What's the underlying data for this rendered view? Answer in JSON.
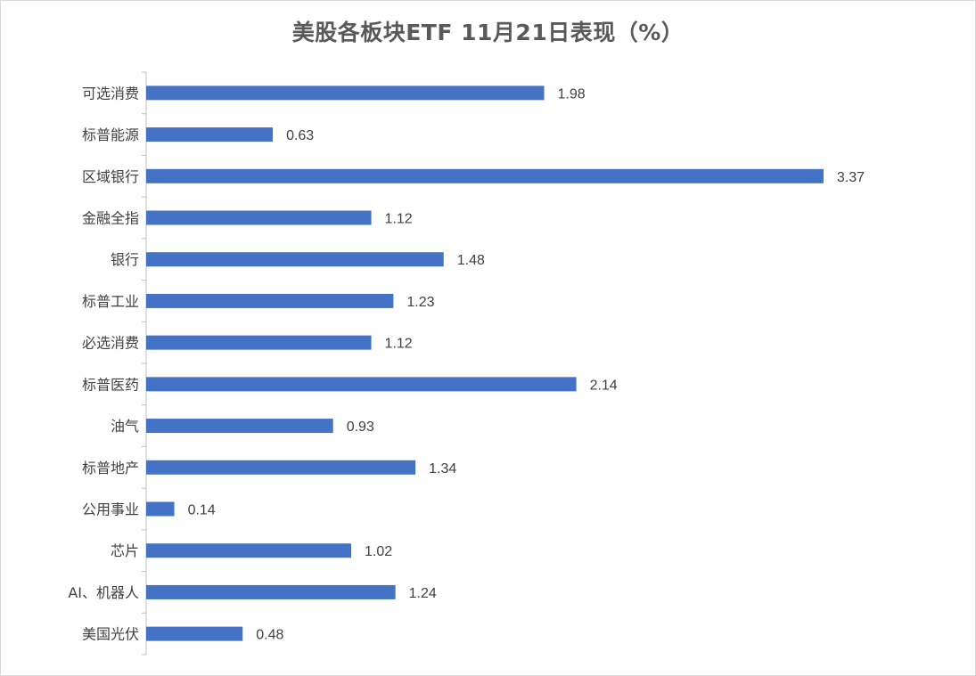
{
  "chart_data": {
    "type": "bar",
    "orientation": "horizontal",
    "title": "美股各板块ETF  11月21日表现（%）",
    "xlabel": "",
    "ylabel": "",
    "categories": [
      "可选消费",
      "标普能源",
      "区域银行",
      "金融全指",
      "银行",
      "标普工业",
      "必选消费",
      "标普医药",
      "油气",
      "标普地产",
      "公用事业",
      "芯片",
      "AI、机器人",
      "美国光伏"
    ],
    "values": [
      1.98,
      0.63,
      3.37,
      1.12,
      1.48,
      1.23,
      1.12,
      2.14,
      0.93,
      1.34,
      0.14,
      1.02,
      1.24,
      0.48
    ],
    "value_labels": [
      "1.98",
      "0.63",
      "3.37",
      "1.12",
      "1.48",
      "1.23",
      "1.12",
      "2.14",
      "0.93",
      "1.34",
      "0.14",
      "1.02",
      "1.24",
      "0.48"
    ],
    "xlim": [
      0,
      4
    ],
    "grid": false,
    "legend": "none",
    "bar_color": "#4472c4"
  }
}
